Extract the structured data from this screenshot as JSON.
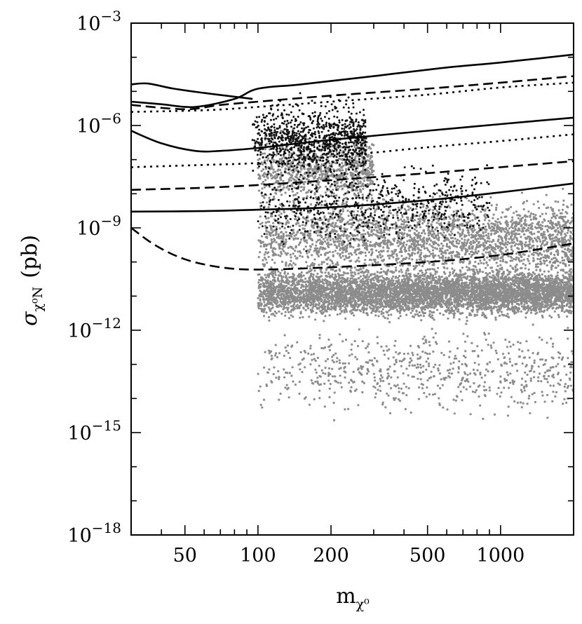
{
  "chart_data": {
    "type": "scatter",
    "title": "",
    "xlabel": "m",
    "xlabel_sub": "χ⁰",
    "ylabel": "σ",
    "ylabel_sub": "χ⁰N",
    "ylabel_unit": "(pb)",
    "x_scale": "log",
    "y_scale": "log",
    "xlim": [
      30,
      2000
    ],
    "ylim": [
      1e-18,
      0.001
    ],
    "x_ticks": [
      {
        "value": 50,
        "label": "50"
      },
      {
        "value": 100,
        "label": "100"
      },
      {
        "value": 200,
        "label": "200"
      },
      {
        "value": 500,
        "label": "500"
      },
      {
        "value": 1000,
        "label": "1000"
      }
    ],
    "y_ticks": [
      {
        "value": 0.001,
        "base": "10",
        "exp": "−3"
      },
      {
        "value": 1e-06,
        "base": "10",
        "exp": "−6"
      },
      {
        "value": 1e-09,
        "base": "10",
        "exp": "−9"
      },
      {
        "value": 1e-12,
        "base": "10",
        "exp": "−12"
      },
      {
        "value": 1e-15,
        "base": "10",
        "exp": "−15"
      },
      {
        "value": 1e-18,
        "base": "10",
        "exp": "−18"
      }
    ],
    "grid": false,
    "legend": "none",
    "colors": {
      "gray_points": "#8c8c8c",
      "black_points": "#111111",
      "curves": "#000000"
    },
    "scatter_populations": [
      {
        "color": "gray",
        "description_free": true,
        "clusters": [
          {
            "x_range": [
              100,
              2000
            ],
            "log10y_center": -10.9,
            "log10y_spread": 0.6
          },
          {
            "x_range": [
              100,
              2000
            ],
            "log10y_center": -9.3,
            "log10y_spread": 1.0
          },
          {
            "x_range": [
              100,
              300
            ],
            "log10y_center": -7.3,
            "log10y_spread": 0.9
          },
          {
            "x_range": [
              100,
              2000
            ],
            "log10y_center": -13.2,
            "log10y_spread": 1.1
          }
        ]
      },
      {
        "color": "black",
        "clusters": [
          {
            "x_range": [
              95,
              280
            ],
            "log10y_center": -6.4,
            "log10y_spread": 0.9
          },
          {
            "x_range": [
              100,
              900
            ],
            "log10y_center": -8.3,
            "log10y_spread": 1.0
          }
        ]
      }
    ],
    "series": [
      {
        "style": "solid",
        "points": [
          [
            30,
            1.6e-05
          ],
          [
            35,
            1.7e-05
          ],
          [
            45,
            1.2e-05
          ],
          [
            60,
            9e-06
          ],
          [
            80,
            7e-06
          ],
          [
            95,
            6e-06
          ]
        ]
      },
      {
        "style": "solid",
        "points": [
          [
            30,
            5e-06
          ],
          [
            40,
            4.2e-06
          ],
          [
            55,
            3.5e-06
          ],
          [
            80,
            6e-06
          ],
          [
            100,
            1.2e-05
          ],
          [
            150,
            1.6e-05
          ],
          [
            300,
            2.8e-05
          ],
          [
            600,
            5e-05
          ],
          [
            1000,
            7e-05
          ],
          [
            2000,
            0.00012
          ]
        ]
      },
      {
        "style": "dashed",
        "points": [
          [
            30,
            4e-06
          ],
          [
            50,
            3e-06
          ],
          [
            70,
            4e-06
          ],
          [
            100,
            5e-06
          ],
          [
            200,
            7.5e-06
          ],
          [
            500,
            1.2e-05
          ],
          [
            1000,
            1.8e-05
          ],
          [
            2000,
            2.8e-05
          ]
        ]
      },
      {
        "style": "dotted",
        "points": [
          [
            30,
            2.5e-06
          ],
          [
            60,
            2.8e-06
          ],
          [
            100,
            3.5e-06
          ],
          [
            200,
            5e-06
          ],
          [
            500,
            8e-06
          ],
          [
            1000,
            1.3e-05
          ],
          [
            2000,
            1.8e-05
          ]
        ]
      },
      {
        "style": "solid",
        "points": [
          [
            30,
            7e-07
          ],
          [
            40,
            3e-07
          ],
          [
            55,
            1.8e-07
          ],
          [
            70,
            1.8e-07
          ],
          [
            100,
            2.2e-07
          ],
          [
            200,
            3.8e-07
          ],
          [
            500,
            7e-07
          ],
          [
            1000,
            1.1e-06
          ],
          [
            2000,
            1.7e-06
          ]
        ]
      },
      {
        "style": "dotted",
        "points": [
          [
            30,
            6e-08
          ],
          [
            60,
            7e-08
          ],
          [
            100,
            8e-08
          ],
          [
            200,
            1.2e-07
          ],
          [
            500,
            2.3e-07
          ],
          [
            1000,
            3.5e-07
          ],
          [
            2000,
            5.5e-07
          ]
        ]
      },
      {
        "style": "dashed",
        "points": [
          [
            30,
            1.3e-08
          ],
          [
            60,
            1.5e-08
          ],
          [
            100,
            1.8e-08
          ],
          [
            200,
            2.5e-08
          ],
          [
            500,
            4e-08
          ],
          [
            1000,
            6e-08
          ],
          [
            2000,
            9e-08
          ]
        ]
      },
      {
        "style": "solid",
        "points": [
          [
            30,
            3e-09
          ],
          [
            60,
            3.1e-09
          ],
          [
            100,
            3.4e-09
          ],
          [
            200,
            4e-09
          ],
          [
            500,
            6.5e-09
          ],
          [
            1000,
            1.1e-08
          ],
          [
            2000,
            2e-08
          ]
        ]
      },
      {
        "style": "dashed",
        "points": [
          [
            30,
            1e-09
          ],
          [
            38,
            3e-10
          ],
          [
            50,
            1.2e-10
          ],
          [
            70,
            7e-11
          ],
          [
            100,
            6e-11
          ],
          [
            200,
            7e-11
          ],
          [
            500,
            1e-10
          ],
          [
            1000,
            1.6e-10
          ],
          [
            2000,
            3.5e-10
          ]
        ]
      }
    ]
  }
}
